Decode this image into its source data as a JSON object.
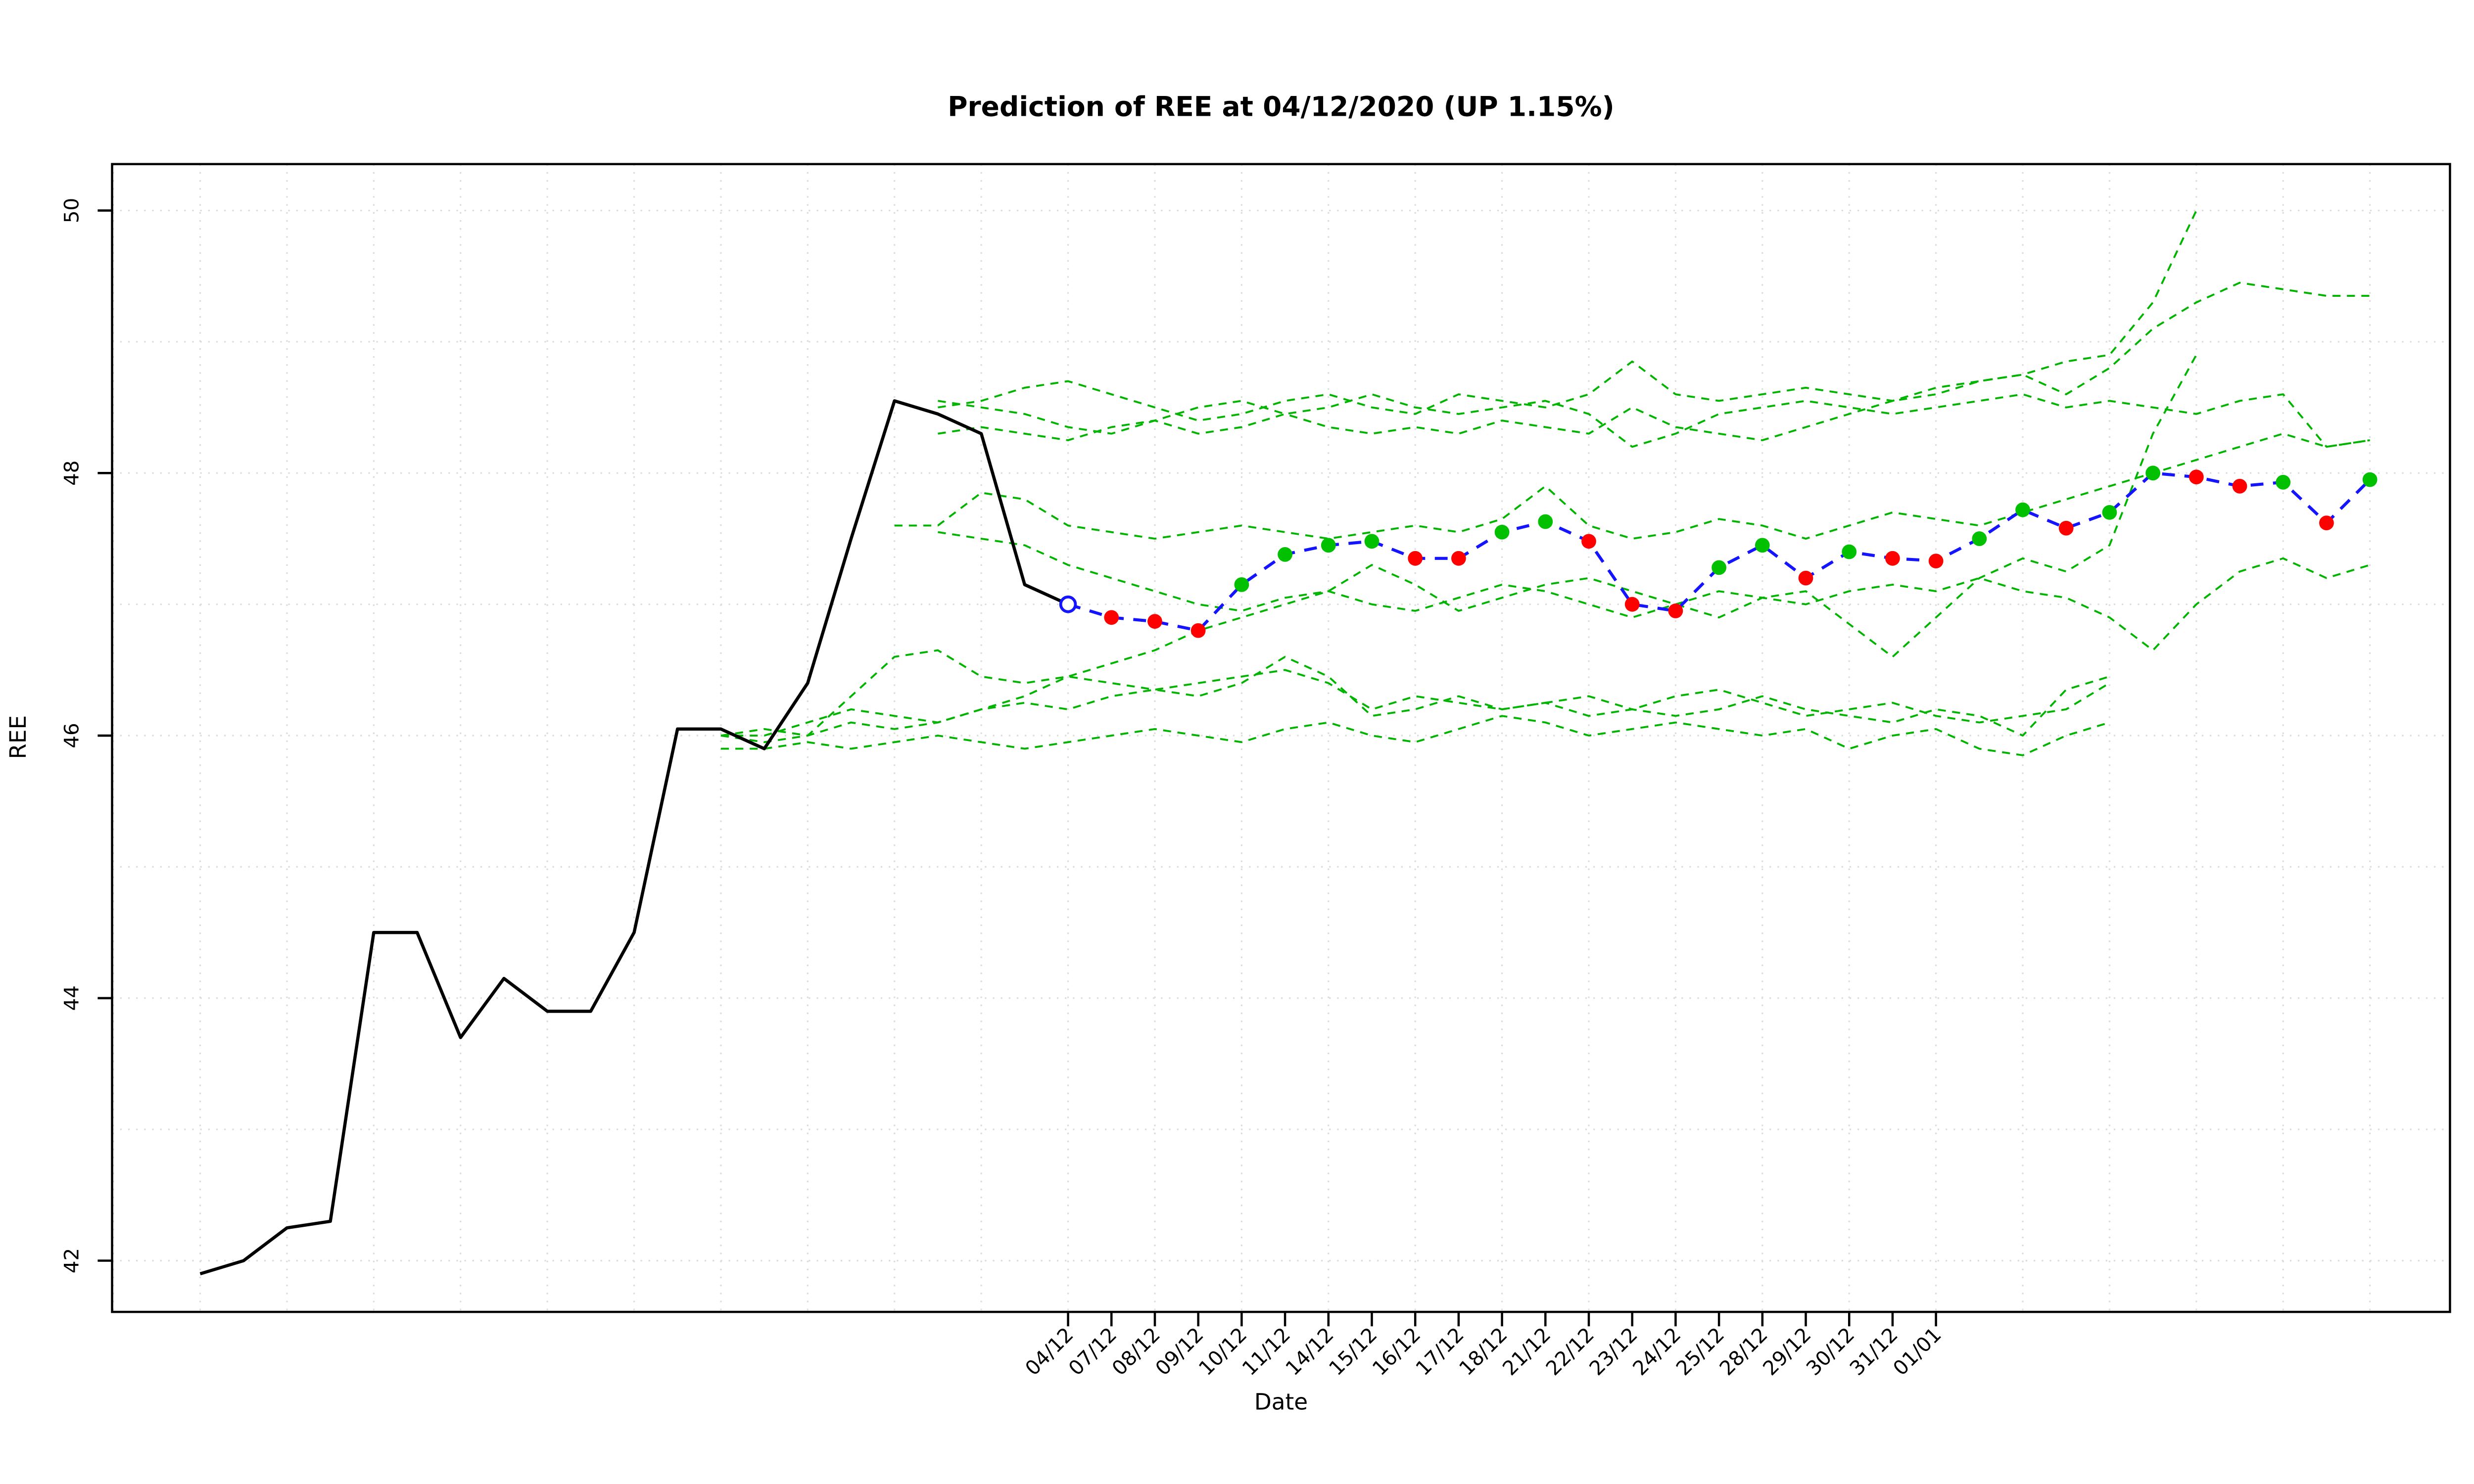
{
  "chart_data": {
    "type": "line",
    "title": "Prediction of REE at 04/12/2020 (UP 1.15%)",
    "xlabel": "Date",
    "ylabel": "REE",
    "ylim": [
      41.5,
      50.3
    ],
    "yticks": [
      42,
      44,
      46,
      48,
      50
    ],
    "grid": true,
    "legend": "none",
    "x_tick_start_index": 20,
    "x_tick_labels": [
      "04/12",
      "07/12",
      "08/12",
      "09/12",
      "10/12",
      "11/12",
      "14/12",
      "15/12",
      "16/12",
      "17/12",
      "18/12",
      "21/12",
      "22/12",
      "23/12",
      "24/12",
      "25/12",
      "28/12",
      "29/12",
      "30/12",
      "31/12",
      "01/01"
    ],
    "historical": {
      "name": "observed-ree",
      "start": 0,
      "values": [
        41.9,
        42.0,
        42.25,
        42.3,
        44.5,
        44.5,
        43.7,
        44.15,
        43.9,
        43.9,
        44.5,
        46.05,
        46.05,
        45.9,
        46.4,
        47.5,
        48.55,
        48.45,
        48.3,
        47.15,
        47.0
      ]
    },
    "prediction": {
      "name": "predicted-ree",
      "start": 20,
      "values": [
        47.0,
        46.9,
        46.87,
        46.8,
        47.15,
        47.38,
        47.45,
        47.48,
        47.35,
        47.35,
        47.55,
        47.63,
        47.48,
        47.0,
        46.95,
        47.28,
        47.45,
        47.2,
        47.4,
        47.35,
        47.33,
        47.5,
        47.72,
        47.58,
        47.7,
        48.0,
        47.97,
        47.9,
        47.93,
        47.62,
        47.95
      ],
      "colors": [
        "open",
        "down",
        "down",
        "down",
        "up",
        "up",
        "up",
        "up",
        "down",
        "down",
        "up",
        "up",
        "down",
        "down",
        "down",
        "up",
        "up",
        "down",
        "up",
        "down",
        "down",
        "up",
        "up",
        "down",
        "up",
        "up",
        "down",
        "down",
        "up",
        "down",
        "up"
      ]
    },
    "simulations": [
      {
        "start": 17,
        "values": [
          48.5,
          48.55,
          48.65,
          48.7,
          48.6,
          48.5,
          48.4,
          48.45,
          48.55,
          48.6,
          48.5,
          48.45,
          48.6,
          48.55,
          48.5,
          48.6,
          48.85,
          48.6,
          48.55,
          48.6,
          48.65,
          48.6,
          48.55,
          48.65,
          48.7,
          48.75,
          48.85,
          48.9,
          49.3,
          50.0
        ]
      },
      {
        "start": 17,
        "values": [
          48.3,
          48.35,
          48.3,
          48.25,
          48.35,
          48.4,
          48.3,
          48.35,
          48.45,
          48.35,
          48.3,
          48.35,
          48.3,
          48.4,
          48.35,
          48.3,
          48.5,
          48.35,
          48.3,
          48.25,
          48.35,
          48.45,
          48.55,
          48.6,
          48.7,
          48.75,
          48.6,
          48.8,
          49.1,
          49.3,
          49.45,
          49.4,
          49.35,
          49.35
        ]
      },
      {
        "start": 17,
        "values": [
          48.55,
          48.5,
          48.45,
          48.35,
          48.3,
          48.4,
          48.5,
          48.55,
          48.45,
          48.5,
          48.6,
          48.5,
          48.45,
          48.5,
          48.55,
          48.45,
          48.2,
          48.3,
          48.45,
          48.5,
          48.55,
          48.5,
          48.45,
          48.5,
          48.55,
          48.6,
          48.5,
          48.55,
          48.5,
          48.45,
          48.55,
          48.6,
          48.2,
          48.25
        ]
      },
      {
        "start": 16,
        "values": [
          47.6,
          47.6,
          47.85,
          47.8,
          47.6,
          47.55,
          47.5,
          47.55,
          47.6,
          47.55,
          47.5,
          47.55,
          47.6,
          47.55,
          47.65,
          47.9,
          47.6,
          47.5,
          47.55,
          47.65,
          47.6,
          47.5,
          47.6,
          47.7,
          47.65,
          47.6,
          47.7,
          47.8,
          47.9,
          48.0,
          48.1,
          48.2,
          48.3,
          48.2,
          48.25
        ]
      },
      {
        "start": 12,
        "values": [
          46.0,
          45.95,
          46.0,
          46.3,
          46.6,
          46.65,
          46.45,
          46.4,
          46.45,
          46.4,
          46.35,
          46.4,
          46.45,
          46.5,
          46.4,
          46.2,
          46.3,
          46.25,
          46.2,
          46.25,
          46.3,
          46.2,
          46.15,
          46.2,
          46.3,
          46.2,
          46.15,
          46.1,
          46.2,
          46.15,
          46.0,
          46.35,
          46.45
        ]
      },
      {
        "start": 12,
        "values": [
          45.9,
          45.9,
          45.95,
          45.9,
          45.95,
          46.0,
          45.95,
          45.9,
          45.95,
          46.0,
          46.05,
          46.0,
          45.95,
          46.05,
          46.1,
          46.0,
          45.95,
          46.05,
          46.15,
          46.1,
          46.0,
          46.05,
          46.1,
          46.05,
          46.0,
          46.05,
          45.9,
          46.0,
          46.05,
          45.9,
          45.85,
          46.0,
          46.1
        ]
      },
      {
        "start": 12,
        "values": [
          46.0,
          46.0,
          46.1,
          46.2,
          46.15,
          46.1,
          46.2,
          46.25,
          46.2,
          46.3,
          46.35,
          46.3,
          46.4,
          46.6,
          46.45,
          46.15,
          46.2,
          46.3,
          46.2,
          46.25,
          46.15,
          46.2,
          46.3,
          46.35,
          46.25,
          46.15,
          46.2,
          46.25,
          46.15,
          46.1,
          46.15,
          46.2,
          46.4
        ]
      },
      {
        "start": 12,
        "values": [
          46.0,
          46.05,
          46.0,
          46.1,
          46.05,
          46.1,
          46.2,
          46.3,
          46.45,
          46.55,
          46.65,
          46.8,
          46.9,
          47.0,
          47.1,
          47.3,
          47.15,
          46.95,
          47.05,
          47.15,
          47.2,
          47.1,
          47.0,
          46.9,
          47.05,
          47.1,
          46.85,
          46.6,
          46.9,
          47.2,
          47.35,
          47.25,
          47.45,
          48.3,
          48.9
        ]
      },
      {
        "start": 17,
        "values": [
          47.55,
          47.5,
          47.45,
          47.3,
          47.2,
          47.1,
          47.0,
          46.95,
          47.05,
          47.1,
          47.0,
          46.95,
          47.05,
          47.15,
          47.1,
          47.0,
          46.9,
          47.0,
          47.1,
          47.05,
          47.0,
          47.1,
          47.15,
          47.1,
          47.2,
          47.1,
          47.05,
          46.9,
          46.65,
          47.0,
          47.25,
          47.35,
          47.2,
          47.3
        ]
      }
    ],
    "colors": {
      "historical": "#000000",
      "prediction_line": "#1414ff",
      "open_marker": "#1414ff",
      "up": "#00c000",
      "down": "#ff0000",
      "simulation": "#00b400",
      "grid": "#dcdcdc"
    }
  }
}
